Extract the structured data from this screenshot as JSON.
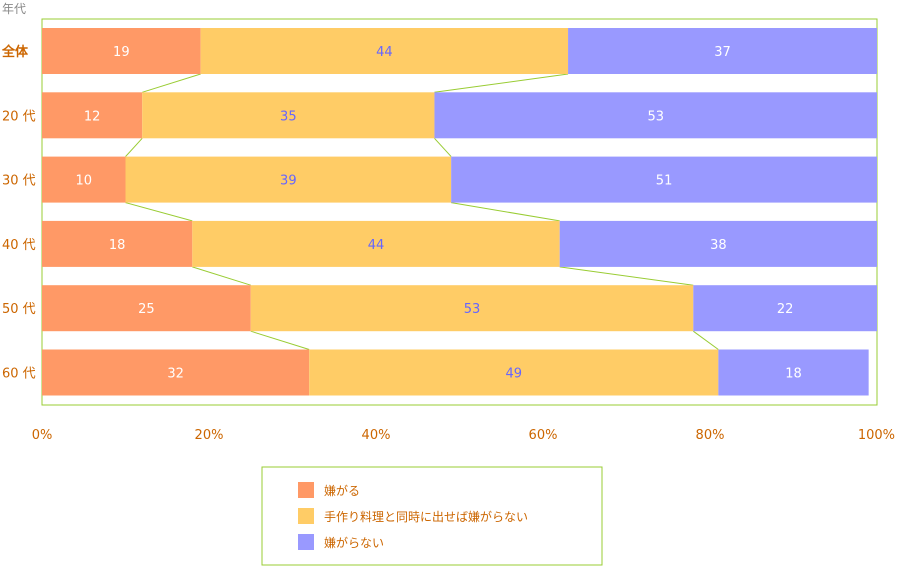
{
  "chart_data": {
    "type": "bar",
    "orientation": "horizontal",
    "stacked": true,
    "percent": true,
    "y_title": "年代",
    "categories": [
      "全体",
      "20 代",
      "30 代",
      "40 代",
      "50 代",
      "60 代"
    ],
    "series": [
      {
        "name": "嫌がる",
        "color": "#ff9966",
        "label_color": "#ffffff",
        "values": [
          19,
          12,
          10,
          18,
          25,
          32
        ]
      },
      {
        "name": "手作り料理と同時に出せば嫌がらない",
        "color": "#ffcc66",
        "label_color": "#6666ff",
        "values": [
          44,
          35,
          39,
          44,
          53,
          49
        ]
      },
      {
        "name": "嫌がらない",
        "color": "#9999ff",
        "label_color": "#ffffff",
        "values": [
          37,
          53,
          51,
          38,
          22,
          18
        ]
      }
    ],
    "x_ticks": [
      "0%",
      "20%",
      "40%",
      "60%",
      "80%",
      "100%"
    ],
    "xlim": [
      0,
      100
    ],
    "category_label_color": "#cc6600",
    "highlight_category": "全体",
    "frame_color": "#99cc33",
    "connector_lines": true,
    "legend_position": "bottom-center"
  }
}
